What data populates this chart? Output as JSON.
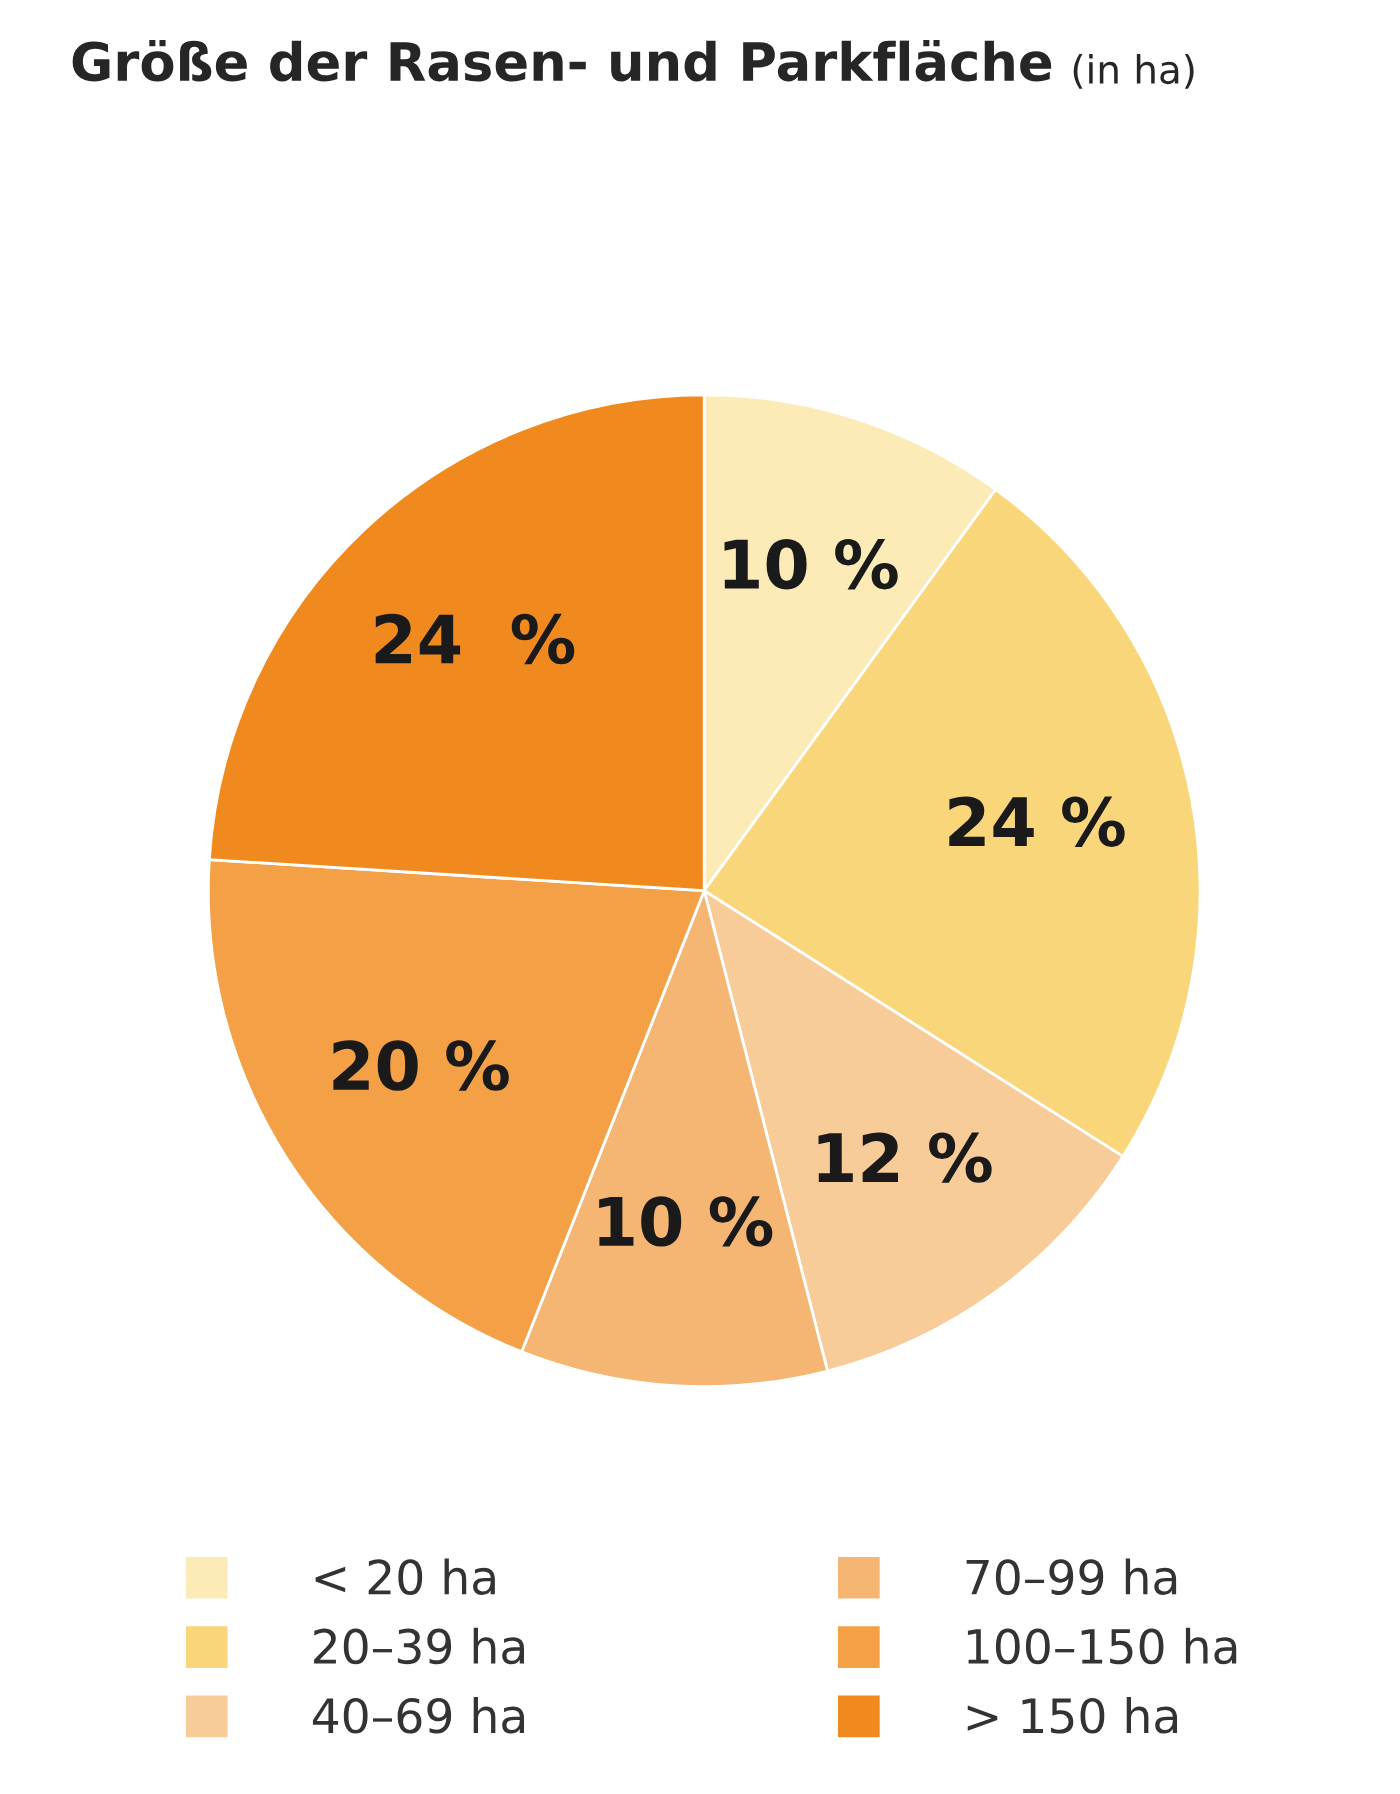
{
  "chart_data": {
    "type": "pie",
    "title": "Größe der Rasen- und Parkfläche",
    "subtitle": "(in ha)",
    "categories": [
      "< 20 ha",
      "20–39 ha",
      "40–69 ha",
      "70–99 ha",
      "100–150 ha",
      "> 150 ha"
    ],
    "values": [
      10,
      24,
      12,
      10,
      20,
      24
    ],
    "value_labels": [
      "10 %",
      "24 %",
      "12 %",
      "10 %",
      "20 %",
      "24  %"
    ],
    "colors": [
      "#fcebb6",
      "#fad67a",
      "#f8cc98",
      "#f5b674",
      "#f3a046",
      "#f08a1f"
    ],
    "legend": "bottom"
  }
}
